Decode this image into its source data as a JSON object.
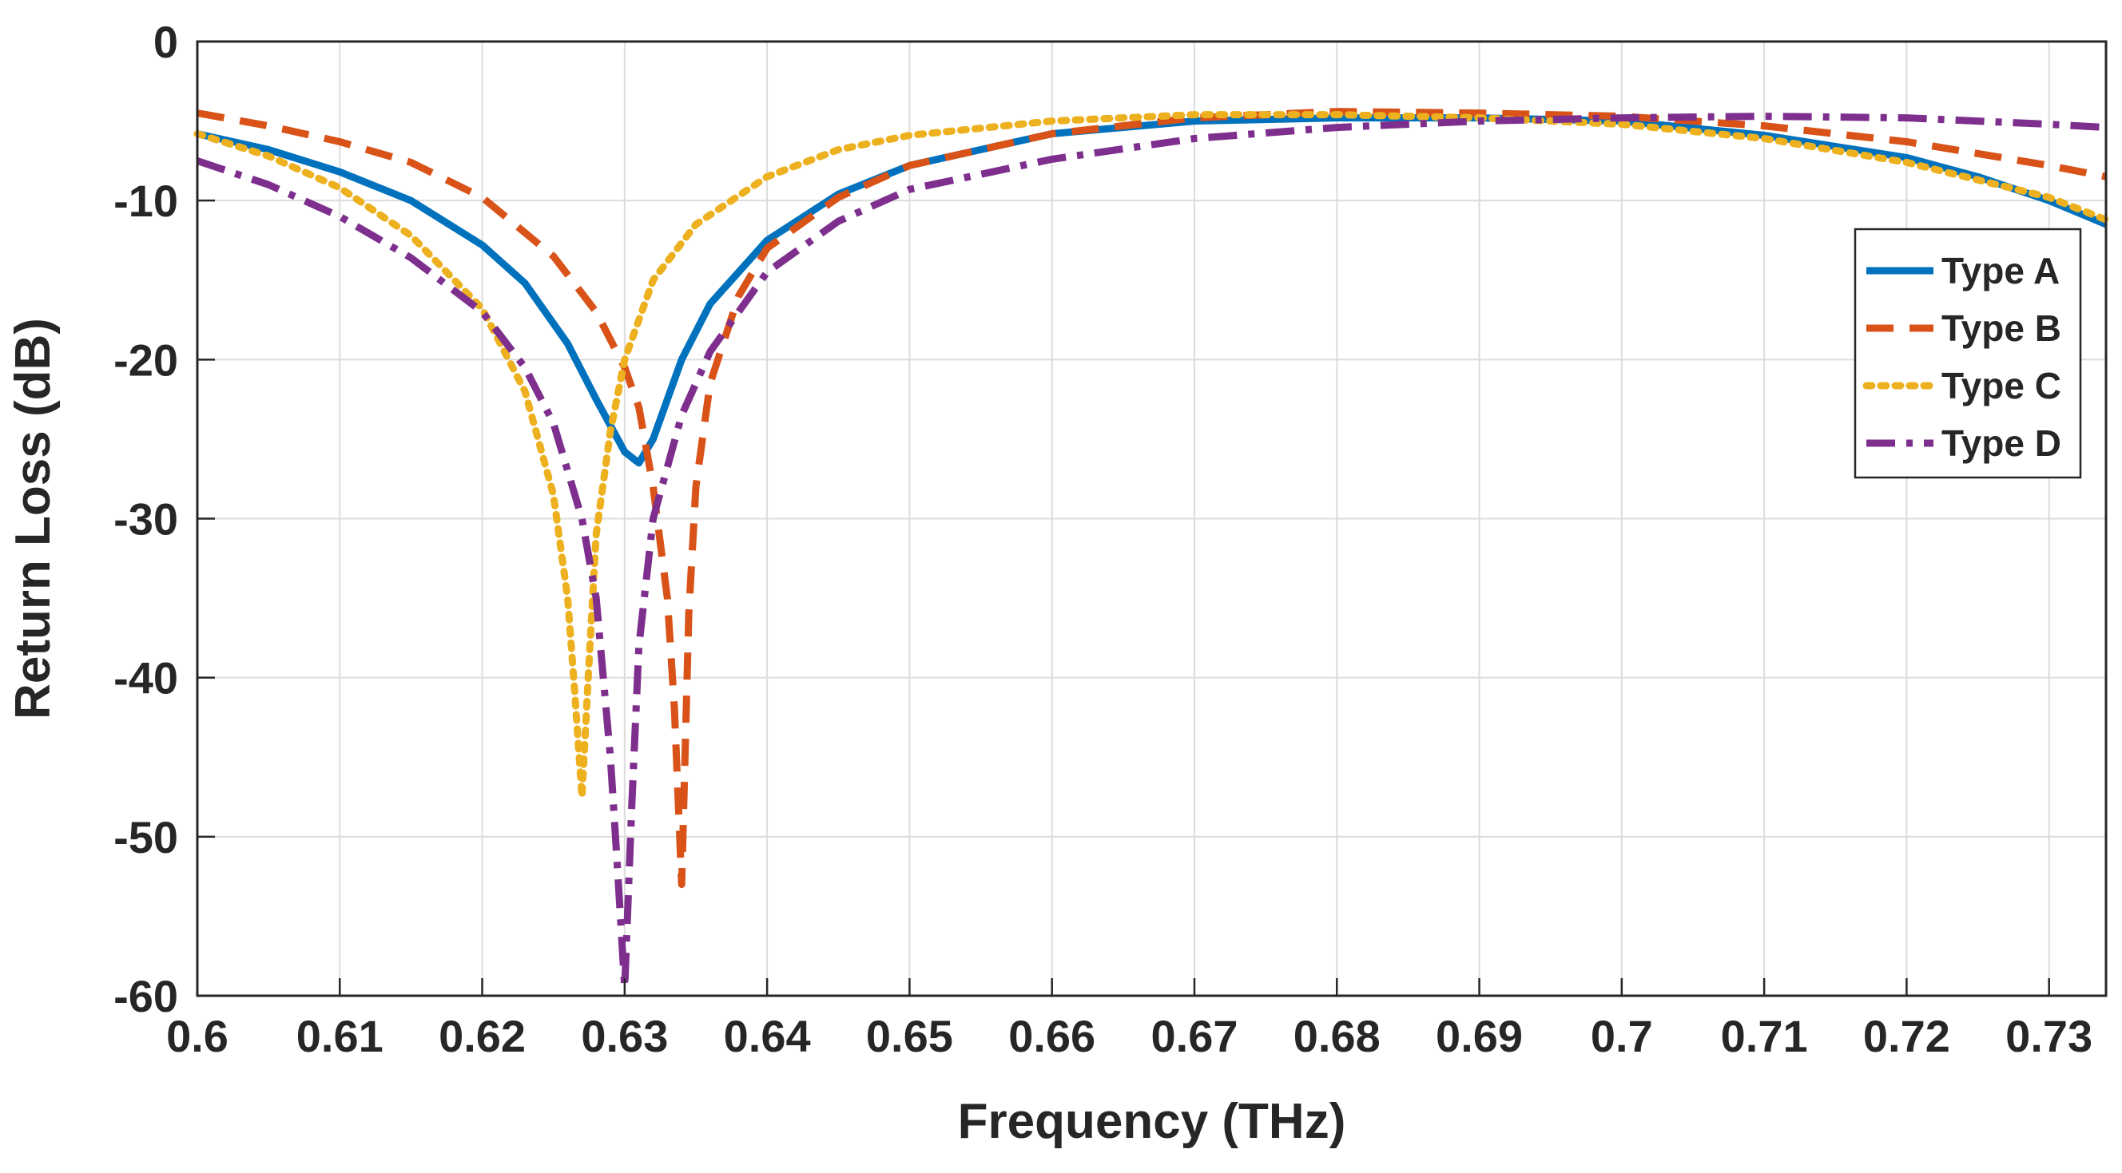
{
  "chart_data": {
    "type": "line",
    "title": "",
    "xlabel": "Frequency (THz)",
    "ylabel": "Return Loss (dB)",
    "xlim": [
      0.6,
      0.734
    ],
    "ylim": [
      -60,
      0
    ],
    "grid": true,
    "legend_position": "right",
    "x_ticks": [
      0.6,
      0.61,
      0.62,
      0.63,
      0.64,
      0.65,
      0.66,
      0.67,
      0.68,
      0.69,
      0.7,
      0.71,
      0.72,
      0.73
    ],
    "x_tick_labels": [
      "0.6",
      "0.61",
      "0.62",
      "0.63",
      "0.64",
      "0.65",
      "0.66",
      "0.67",
      "0.68",
      "0.69",
      "0.7",
      "0.71",
      "0.72",
      "0.73"
    ],
    "y_ticks": [
      0,
      -10,
      -20,
      -30,
      -40,
      -50,
      -60
    ],
    "y_tick_labels": [
      "0",
      "-10",
      "-20",
      "-30",
      "-40",
      "-50",
      "-60"
    ],
    "series": [
      {
        "name": "Type A",
        "color": "#0072BD",
        "style": "solid",
        "x": [
          0.6,
          0.605,
          0.61,
          0.615,
          0.62,
          0.623,
          0.626,
          0.628,
          0.63,
          0.631,
          0.632,
          0.634,
          0.636,
          0.64,
          0.645,
          0.65,
          0.66,
          0.67,
          0.68,
          0.69,
          0.7,
          0.71,
          0.72,
          0.725,
          0.73,
          0.734
        ],
        "values": [
          -5.8,
          -6.8,
          -8.2,
          -10.0,
          -12.8,
          -15.2,
          -19.0,
          -22.5,
          -25.8,
          -26.5,
          -25.0,
          -20.0,
          -16.5,
          -12.5,
          -9.6,
          -7.8,
          -5.8,
          -5.0,
          -4.8,
          -4.8,
          -5.0,
          -5.9,
          -7.3,
          -8.5,
          -10.0,
          -11.5
        ]
      },
      {
        "name": "Type B",
        "color": "#D95319",
        "style": "dashed",
        "x": [
          0.6,
          0.605,
          0.61,
          0.615,
          0.62,
          0.625,
          0.628,
          0.63,
          0.631,
          0.632,
          0.633,
          0.6335,
          0.634,
          0.6345,
          0.635,
          0.636,
          0.638,
          0.64,
          0.645,
          0.65,
          0.66,
          0.67,
          0.68,
          0.69,
          0.7,
          0.71,
          0.72,
          0.73,
          0.734
        ],
        "values": [
          -4.5,
          -5.3,
          -6.3,
          -7.6,
          -9.8,
          -13.5,
          -17.0,
          -20.5,
          -23.0,
          -28.0,
          -35.0,
          -42.0,
          -53.0,
          -36.0,
          -28.0,
          -21.5,
          -16.0,
          -13.0,
          -9.8,
          -7.8,
          -5.8,
          -4.8,
          -4.4,
          -4.5,
          -4.7,
          -5.3,
          -6.3,
          -7.8,
          -8.5
        ]
      },
      {
        "name": "Type C",
        "color": "#EDB120",
        "style": "dotted",
        "x": [
          0.6,
          0.605,
          0.61,
          0.615,
          0.62,
          0.623,
          0.625,
          0.626,
          0.6265,
          0.627,
          0.6275,
          0.628,
          0.629,
          0.63,
          0.632,
          0.635,
          0.64,
          0.645,
          0.65,
          0.66,
          0.67,
          0.68,
          0.69,
          0.7,
          0.71,
          0.72,
          0.73,
          0.734
        ],
        "values": [
          -5.8,
          -7.2,
          -9.2,
          -12.2,
          -16.8,
          -22.0,
          -28.5,
          -35.0,
          -41.0,
          -47.5,
          -39.0,
          -31.0,
          -24.5,
          -20.0,
          -15.0,
          -11.5,
          -8.5,
          -6.8,
          -5.9,
          -5.0,
          -4.6,
          -4.6,
          -4.8,
          -5.2,
          -6.1,
          -7.6,
          -9.8,
          -11.2
        ]
      },
      {
        "name": "Type D",
        "color": "#7E2F8E",
        "style": "dashdot",
        "x": [
          0.6,
          0.605,
          0.61,
          0.615,
          0.62,
          0.623,
          0.625,
          0.627,
          0.628,
          0.629,
          0.6295,
          0.63,
          0.6305,
          0.631,
          0.632,
          0.634,
          0.636,
          0.64,
          0.645,
          0.65,
          0.66,
          0.67,
          0.68,
          0.69,
          0.7,
          0.71,
          0.72,
          0.73,
          0.734
        ],
        "values": [
          -7.5,
          -9.0,
          -11.0,
          -13.6,
          -17.0,
          -20.5,
          -24.0,
          -30.0,
          -35.0,
          -45.0,
          -52.0,
          -59.5,
          -48.0,
          -38.0,
          -30.0,
          -23.5,
          -19.5,
          -14.5,
          -11.3,
          -9.3,
          -7.4,
          -6.1,
          -5.4,
          -5.0,
          -4.8,
          -4.7,
          -4.8,
          -5.2,
          -5.4
        ]
      }
    ]
  }
}
